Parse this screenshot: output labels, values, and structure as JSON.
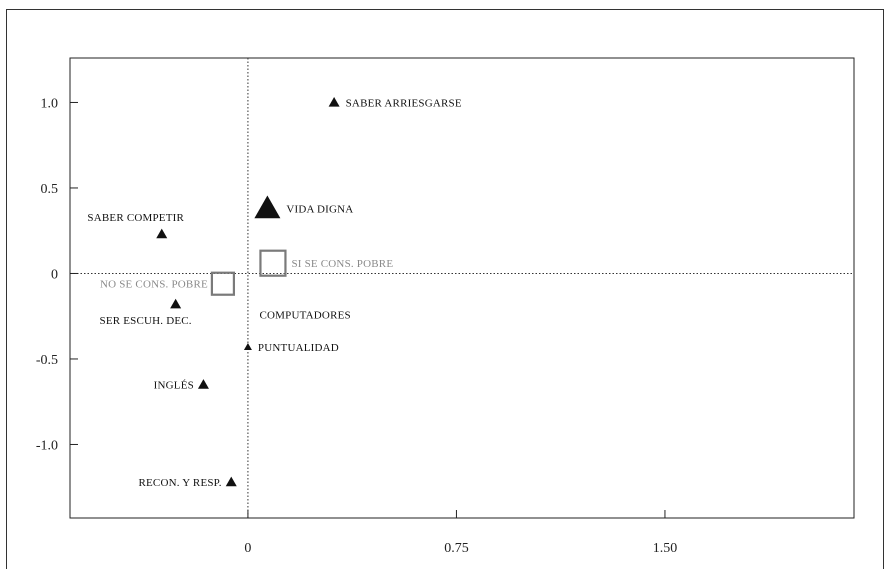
{
  "chart_data": {
    "type": "scatter",
    "title": "",
    "xlabel": "",
    "ylabel": "",
    "xlim": [
      -0.64,
      2.18
    ],
    "ylim": [
      -1.43,
      1.26
    ],
    "x_ticks": [
      {
        "value": 0,
        "label": "0"
      },
      {
        "value": 0.75,
        "label": "0.75"
      },
      {
        "value": 1.5,
        "label": "1.50"
      }
    ],
    "y_ticks": [
      {
        "value": 1.0,
        "label": "1.0"
      },
      {
        "value": 0.5,
        "label": "0.5"
      },
      {
        "value": 0.0,
        "label": "0"
      },
      {
        "value": -0.5,
        "label": "-0.5"
      },
      {
        "value": -1.0,
        "label": "-1.0"
      }
    ],
    "grid": false,
    "reference_lines": {
      "x": 0,
      "y": 0
    },
    "colors": {
      "triangle": "#111111",
      "square": "#7a7a7a",
      "gray_label": "#8a8a8a"
    },
    "points": [
      {
        "label": "SABER ARRIESGARSE",
        "x": 0.31,
        "y": 1.0,
        "marker": "triangle",
        "size": "small",
        "label_pos": "right"
      },
      {
        "label": "VIDA DIGNA",
        "x": 0.07,
        "y": 0.38,
        "marker": "triangle",
        "size": "large",
        "label_pos": "right"
      },
      {
        "label": "SABER COMPETIR",
        "x": -0.31,
        "y": 0.23,
        "marker": "triangle",
        "size": "small",
        "label_pos": "above-left"
      },
      {
        "label": "SI SE CONS. POBRE",
        "x": 0.09,
        "y": 0.06,
        "marker": "square",
        "size": "large",
        "label_pos": "right"
      },
      {
        "label": "NO SE CONS. POBRE",
        "x": -0.09,
        "y": -0.06,
        "marker": "square",
        "size": "medium",
        "label_pos": "left"
      },
      {
        "label": "SER ESCUH. DEC.",
        "x": -0.26,
        "y": -0.18,
        "marker": "triangle",
        "size": "small",
        "label_pos": "below-left"
      },
      {
        "label": "COMPUTADORES",
        "x": 0.02,
        "y": -0.24,
        "marker": "none",
        "size": "small",
        "label_pos": "right"
      },
      {
        "label": "PUNTUALIDAD",
        "x": 0.0,
        "y": -0.43,
        "marker": "triangle",
        "size": "tiny",
        "label_pos": "right"
      },
      {
        "label": "INGLÉS",
        "x": -0.16,
        "y": -0.65,
        "marker": "triangle",
        "size": "small",
        "label_pos": "left"
      },
      {
        "label": "RECON. Y RESP.",
        "x": -0.06,
        "y": -1.22,
        "marker": "triangle",
        "size": "small",
        "label_pos": "left"
      }
    ]
  }
}
